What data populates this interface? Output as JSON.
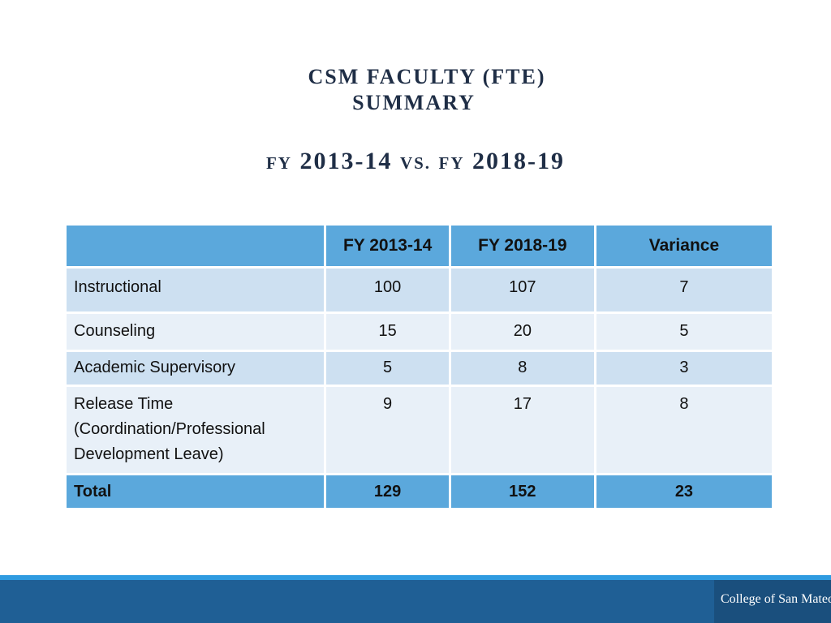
{
  "slide": {
    "title_line1": "CSM FACULTY (FTE)",
    "title_line2": "SUMMARY",
    "subtitle_fy1_prefix": "FY",
    "subtitle_fy1_year": "2013-14",
    "subtitle_vs": "VS.",
    "subtitle_fy2_prefix": "FY",
    "subtitle_fy2_year": "2018-19"
  },
  "table": {
    "headers": [
      "",
      "FY 2013-14",
      "FY 2018-19",
      "Variance"
    ],
    "rows": [
      {
        "label": "Instructional",
        "fy2013": "100",
        "fy2018": "107",
        "variance": "7"
      },
      {
        "label": "Counseling",
        "fy2013": "15",
        "fy2018": "20",
        "variance": "5"
      },
      {
        "label": "Academic Supervisory",
        "fy2013": "5",
        "fy2018": "8",
        "variance": "3"
      },
      {
        "label_line1": "Release Time",
        "label_line2": "(Coordination/Professional",
        "label_line3": "Development Leave)",
        "fy2013": "9",
        "fy2018": "17",
        "variance": "8"
      }
    ],
    "total": {
      "label": "Total",
      "fy2013": "129",
      "fy2018": "152",
      "variance": "23"
    }
  },
  "footer": {
    "logo_text": "College of San Mateo"
  },
  "colors": {
    "header_blue": "#5ba8dc",
    "row_dark": "#cde0f1",
    "row_light": "#e8f0f8",
    "footer_blue": "#1f5f95",
    "footer_accent": "#2f9be0",
    "title_navy": "#1f2e46"
  }
}
